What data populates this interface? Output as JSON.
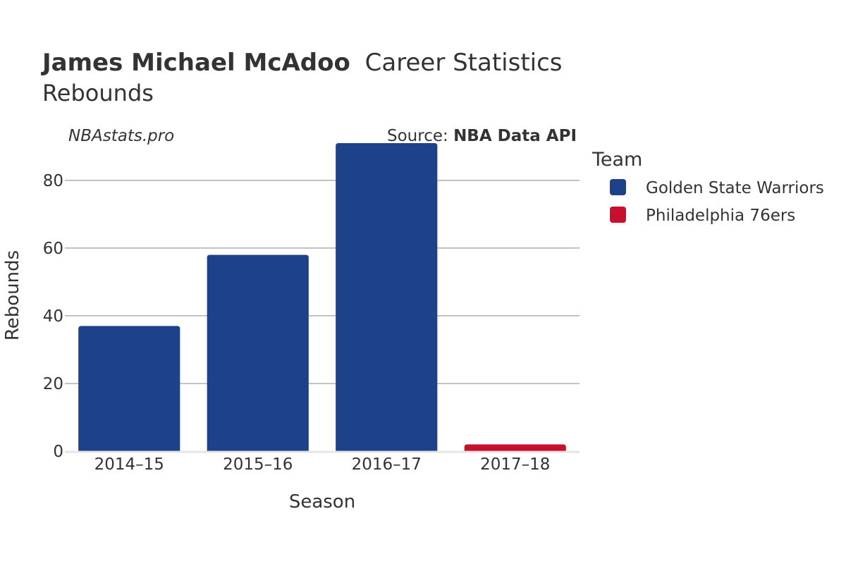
{
  "header": {
    "title_bold": "James Michael McAdoo",
    "title_rest": "Career Statistics",
    "subtitle": "Rebounds"
  },
  "watermark": "NBAstats.pro",
  "source": {
    "label": "Source: ",
    "value": "NBA Data API"
  },
  "colors": {
    "gsw": "#1D428A",
    "phi": "#C8102E",
    "grid": "#888888",
    "zero_line": "#E5E5E5"
  },
  "legend": {
    "title": "Team",
    "items": [
      {
        "label": "Golden State Warriors",
        "color": "#1D428A"
      },
      {
        "label": "Philadelphia 76ers",
        "color": "#C8102E"
      }
    ]
  },
  "chart_data": {
    "type": "bar",
    "xlabel": "Season",
    "ylabel": "Rebounds",
    "categories": [
      "2014–15",
      "2015–16",
      "2016–17",
      "2017–18"
    ],
    "values": [
      37,
      58,
      91,
      2
    ],
    "teams": [
      "Golden State Warriors",
      "Golden State Warriors",
      "Golden State Warriors",
      "Philadelphia 76ers"
    ],
    "yticks": [
      0,
      20,
      40,
      60,
      80
    ],
    "ylim": [
      0,
      95.8
    ],
    "grid": true,
    "legend_position": "right"
  }
}
